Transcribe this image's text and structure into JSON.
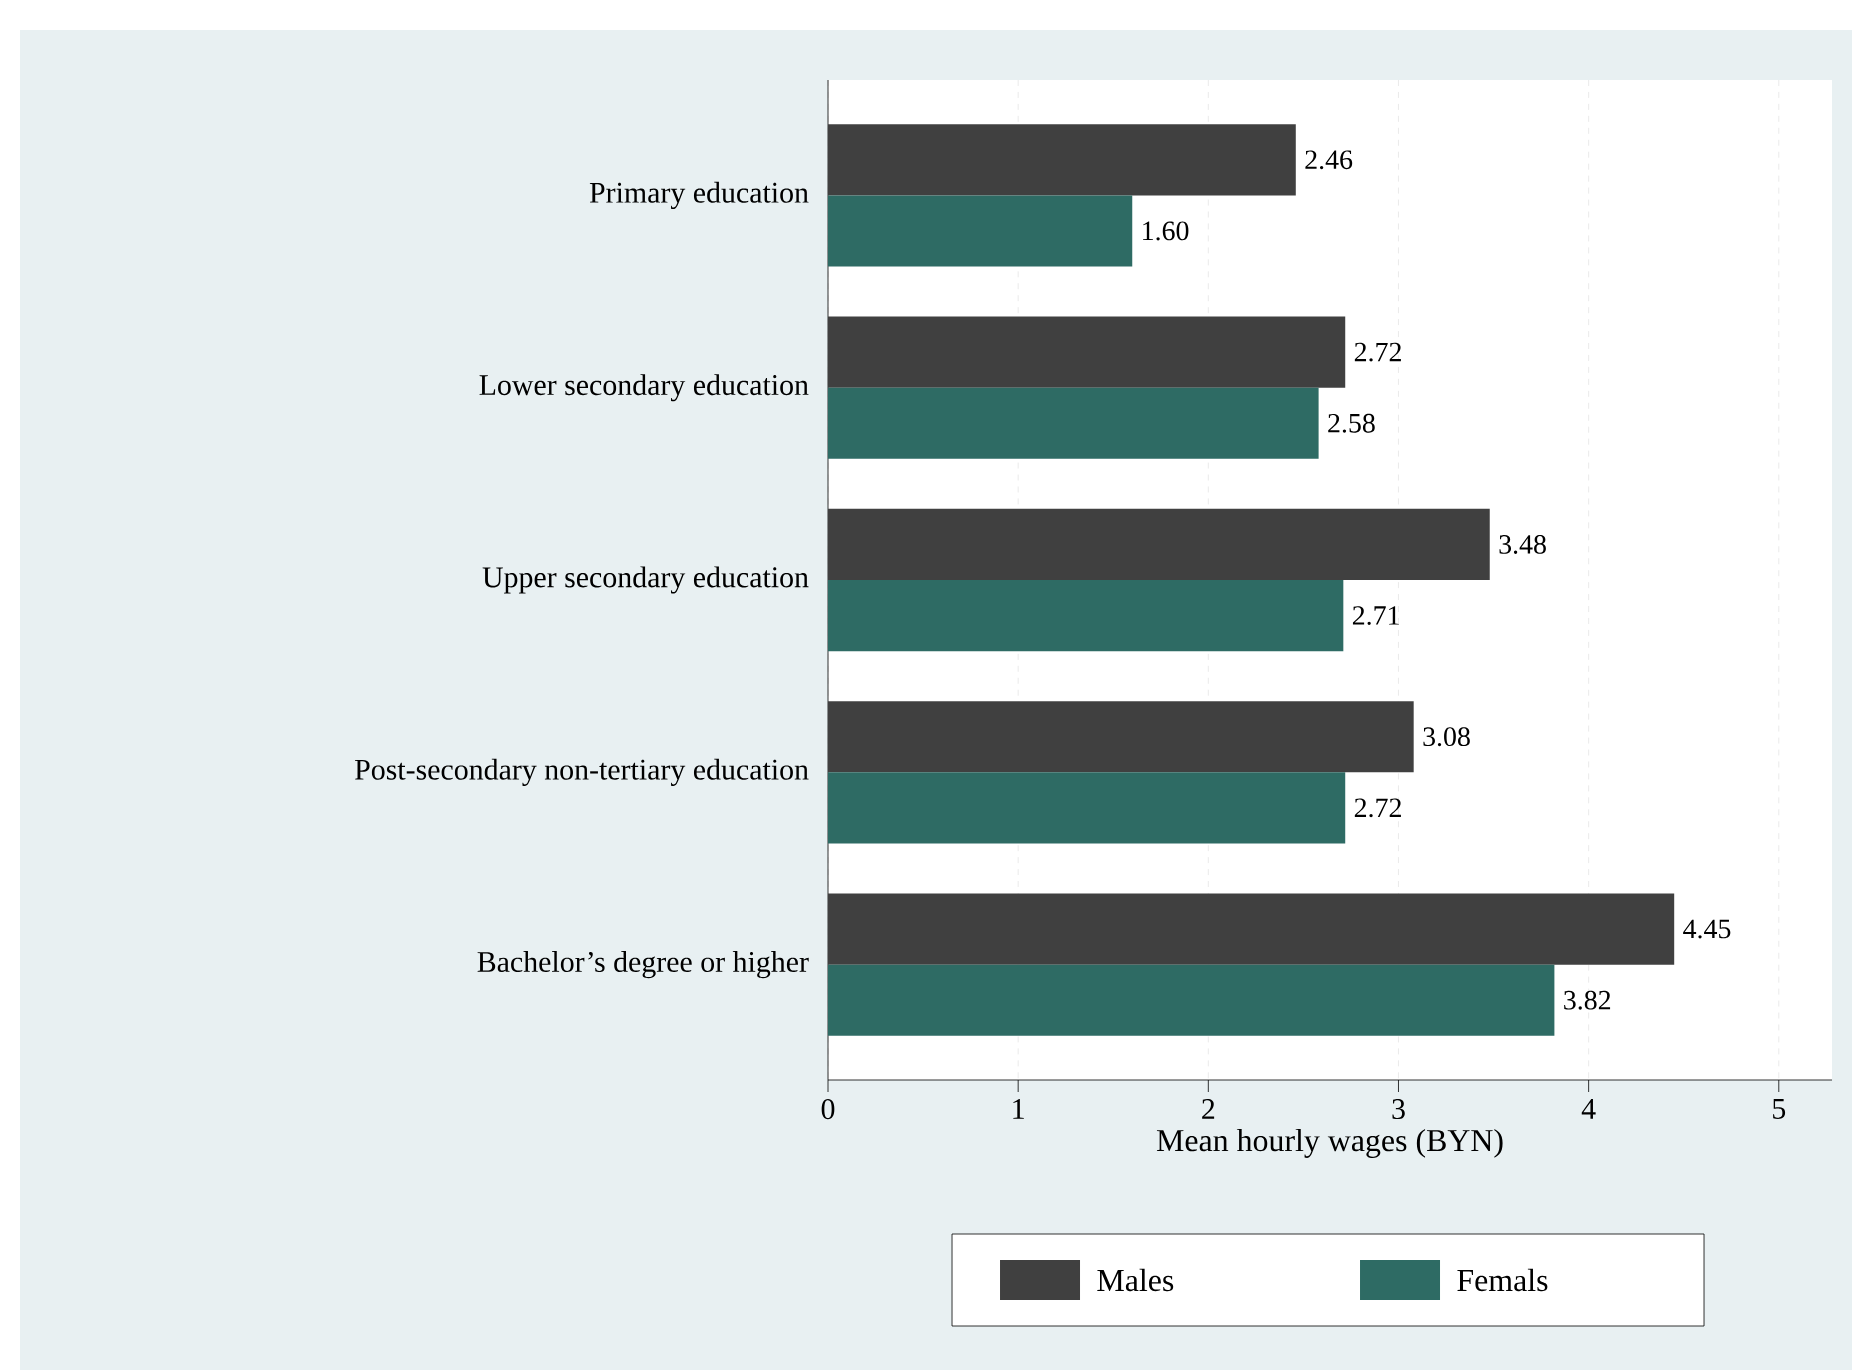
{
  "chart_data": {
    "type": "bar",
    "orientation": "horizontal",
    "categories": [
      "Primary education",
      "Lower secondary education",
      "Upper secondary education",
      "Post-secondary non-tertiary education",
      "Bachelor’s degree or higher"
    ],
    "series": [
      {
        "name": "Males",
        "color": "#404040",
        "values": [
          2.46,
          2.72,
          3.48,
          3.08,
          4.45
        ],
        "value_labels": [
          "2.46",
          "2.72",
          "3.48",
          "3.08",
          "4.45"
        ]
      },
      {
        "name": "Femals",
        "color": "#2e6b64",
        "values": [
          1.6,
          2.58,
          2.71,
          2.72,
          3.82
        ],
        "value_labels": [
          "1.60",
          "2.58",
          "2.71",
          "2.72",
          "3.82"
        ]
      }
    ],
    "xlabel": "Mean hourly wages (BYN)",
    "xlim": [
      0,
      5.28
    ],
    "xticks": [
      0,
      1,
      2,
      3,
      4,
      5
    ],
    "grid": "x",
    "legend": "bottom"
  }
}
